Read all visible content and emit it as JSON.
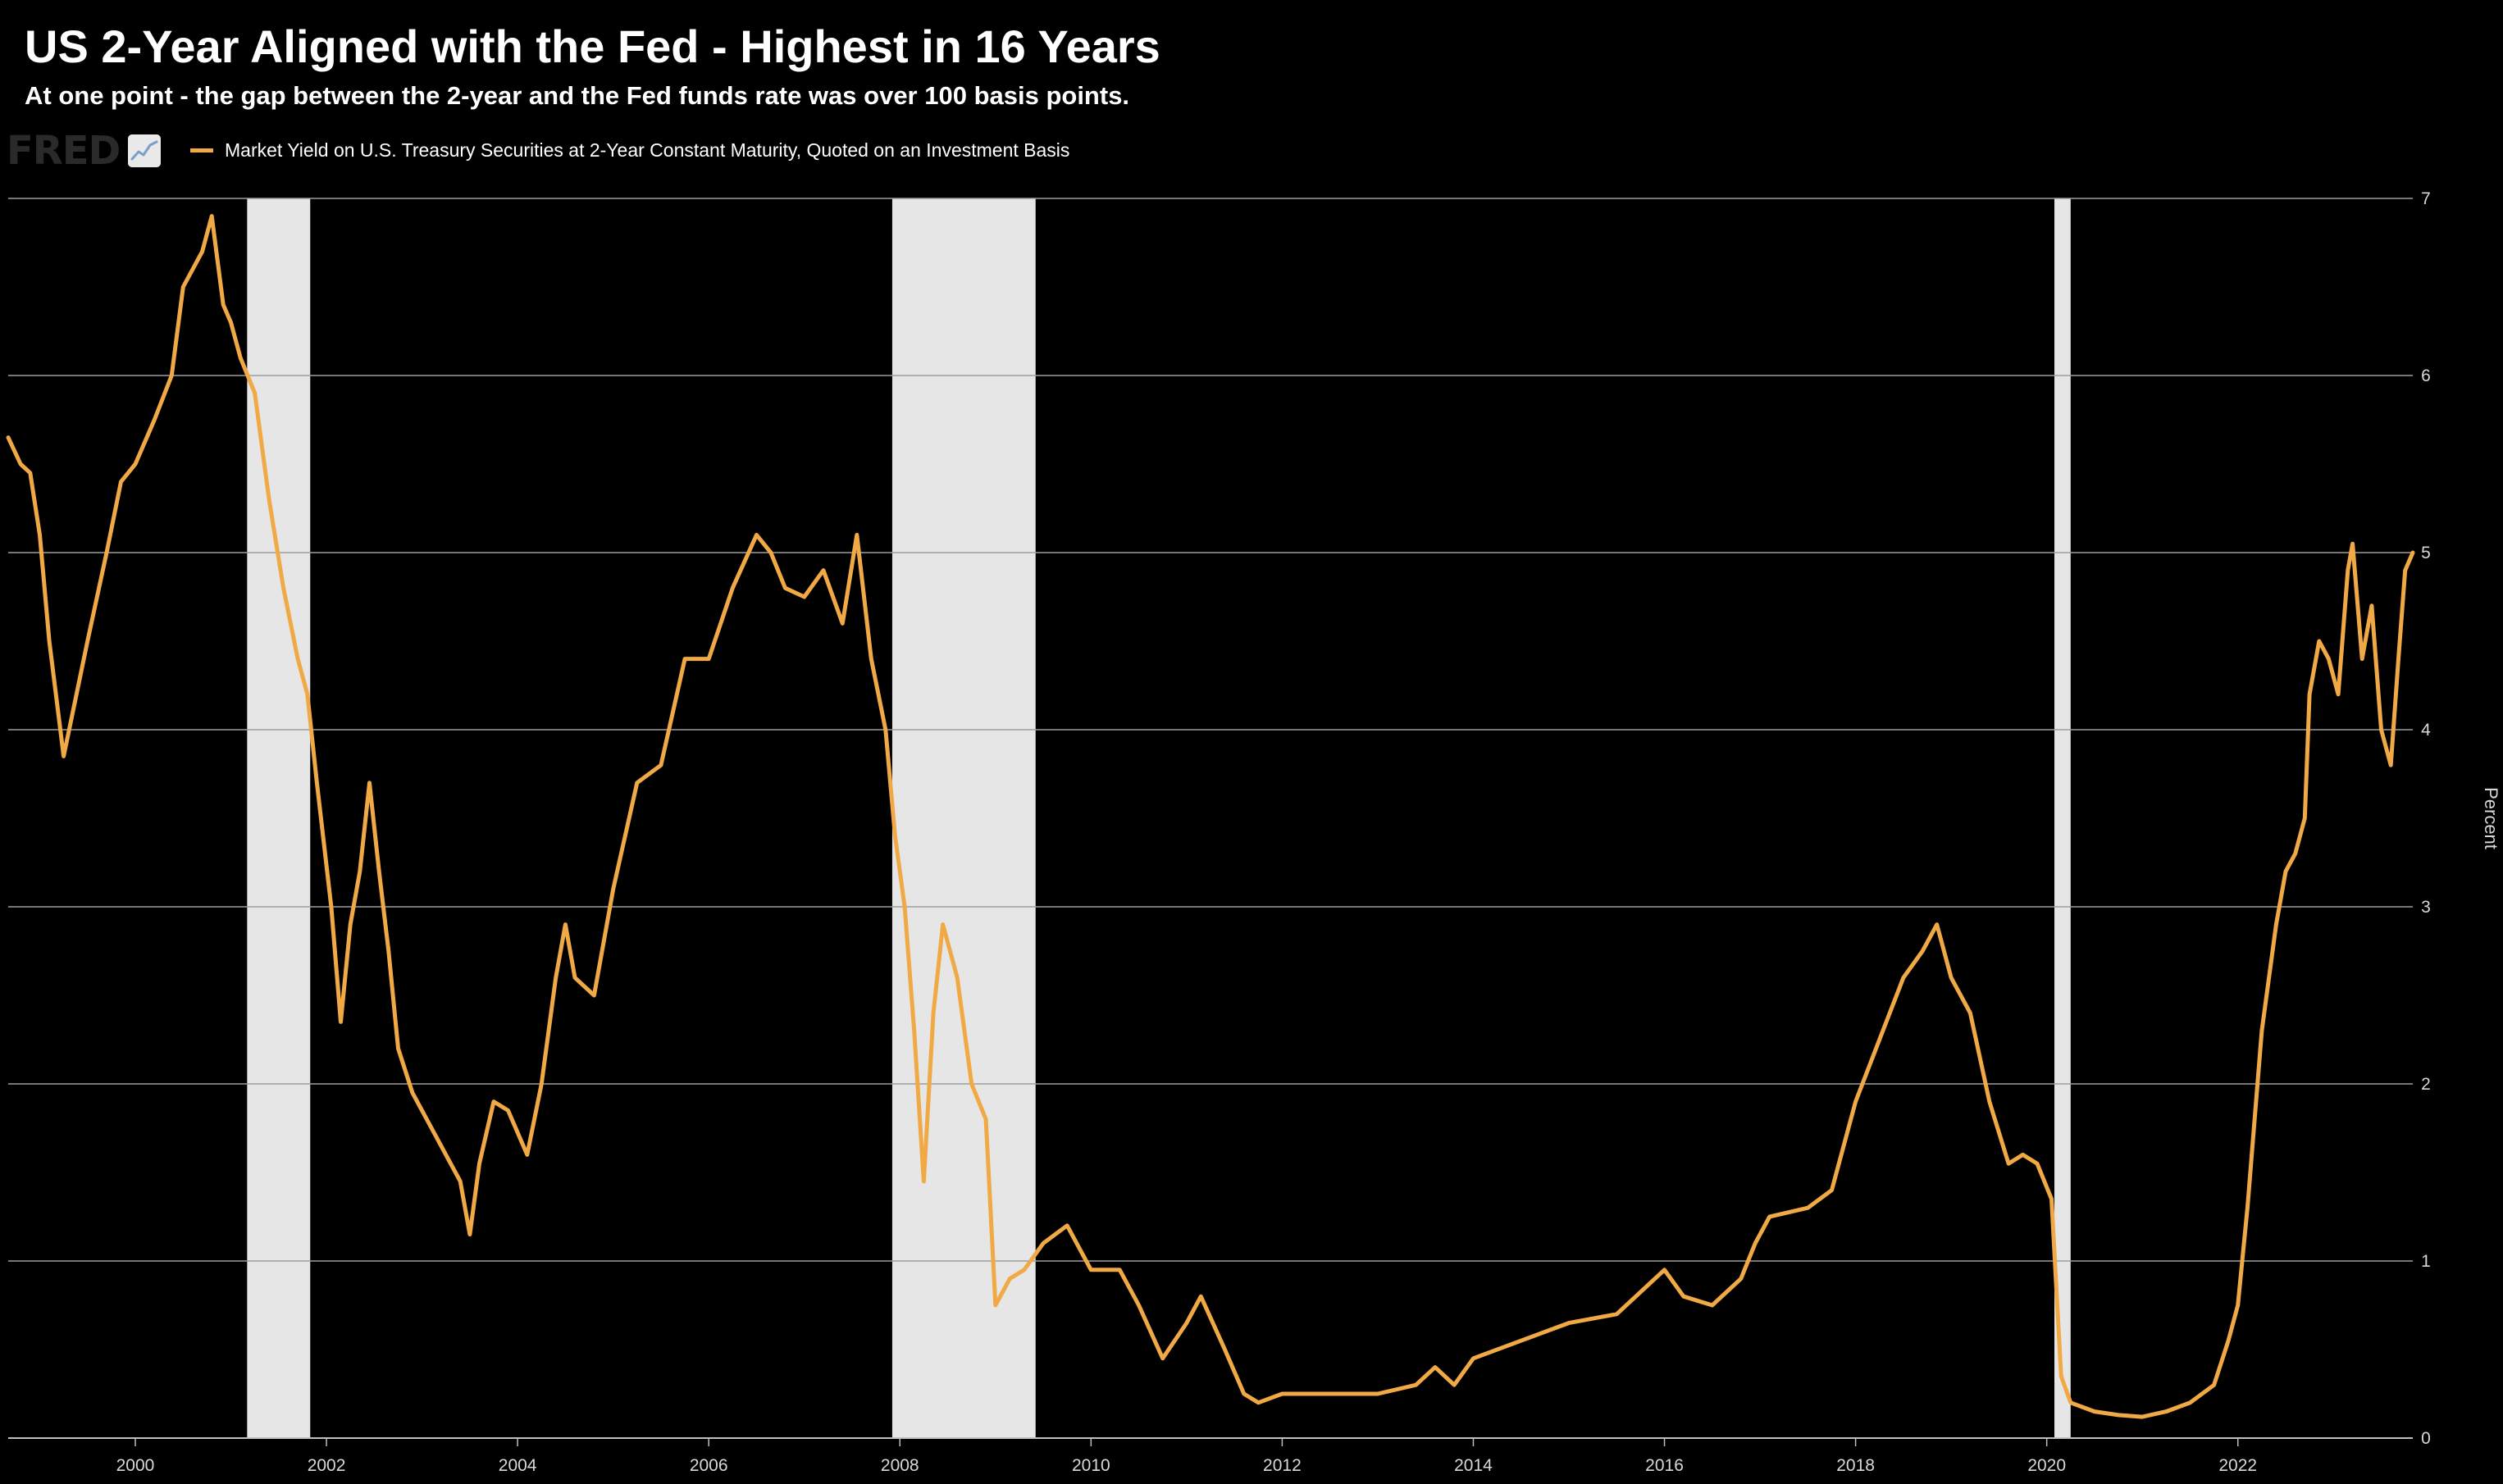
{
  "header": {
    "title": "US 2-Year Aligned with the Fed - Highest in 16 Years",
    "subtitle": "At one point - the gap between the 2-year and the Fed funds rate was over 100 basis points."
  },
  "brand": {
    "logo_text": "FRED",
    "logo_icon": "trend-chart-icon"
  },
  "chart_data": {
    "type": "line",
    "ylabel": "Percent",
    "xlim": [
      1998.67,
      2023.83
    ],
    "ylim": [
      0,
      7
    ],
    "x_ticks": [
      "2000",
      "2002",
      "2004",
      "2006",
      "2008",
      "2010",
      "2012",
      "2014",
      "2016",
      "2018",
      "2020",
      "2022"
    ],
    "y_ticks": [
      "0",
      "1",
      "2",
      "3",
      "4",
      "5",
      "6",
      "7"
    ],
    "grid": true,
    "legend_position": "top-left",
    "series": [
      {
        "name": "Market Yield on U.S. Treasury Securities at 2-Year Constant Maturity, Quoted on an Investment Basis",
        "color": "#f0a944",
        "x": [
          1998.67,
          1998.8,
          1998.9,
          1999.0,
          1999.1,
          1999.25,
          1999.5,
          1999.7,
          1999.85,
          2000.0,
          2000.2,
          2000.38,
          2000.5,
          2000.7,
          2000.8,
          2000.92,
          2001.0,
          2001.1,
          2001.25,
          2001.4,
          2001.55,
          2001.7,
          2001.8,
          2001.9,
          2002.05,
          2002.15,
          2002.25,
          2002.35,
          2002.45,
          2002.55,
          2002.65,
          2002.75,
          2002.9,
          2003.1,
          2003.25,
          2003.4,
          2003.5,
          2003.6,
          2003.75,
          2003.9,
          2004.1,
          2004.25,
          2004.4,
          2004.5,
          2004.6,
          2004.8,
          2005.0,
          2005.25,
          2005.5,
          2005.75,
          2006.0,
          2006.25,
          2006.5,
          2006.65,
          2006.8,
          2007.0,
          2007.2,
          2007.4,
          2007.55,
          2007.7,
          2007.85,
          2007.95,
          2008.05,
          2008.15,
          2008.25,
          2008.35,
          2008.45,
          2008.6,
          2008.75,
          2008.9,
          2009.0,
          2009.15,
          2009.3,
          2009.5,
          2009.75,
          2010.0,
          2010.3,
          2010.5,
          2010.75,
          2011.0,
          2011.15,
          2011.4,
          2011.6,
          2011.75,
          2012.0,
          2012.5,
          2013.0,
          2013.4,
          2013.6,
          2013.8,
          2014.0,
          2014.5,
          2015.0,
          2015.5,
          2015.8,
          2016.0,
          2016.2,
          2016.5,
          2016.8,
          2016.95,
          2017.1,
          2017.5,
          2017.75,
          2018.0,
          2018.25,
          2018.5,
          2018.7,
          2018.85,
          2019.0,
          2019.2,
          2019.4,
          2019.6,
          2019.75,
          2019.9,
          2020.05,
          2020.15,
          2020.25,
          2020.5,
          2020.75,
          2021.0,
          2021.25,
          2021.5,
          2021.75,
          2021.9,
          2022.0,
          2022.1,
          2022.25,
          2022.4,
          2022.5,
          2022.6,
          2022.7,
          2022.75,
          2022.85,
          2022.95,
          2023.05,
          2023.15,
          2023.2,
          2023.3,
          2023.4,
          2023.5,
          2023.6,
          2023.68,
          2023.75,
          2023.83
        ],
        "values": [
          5.65,
          5.5,
          5.45,
          5.1,
          4.5,
          3.85,
          4.5,
          5.0,
          5.4,
          5.5,
          5.75,
          6.0,
          6.5,
          6.7,
          6.9,
          6.4,
          6.3,
          6.1,
          5.9,
          5.3,
          4.8,
          4.4,
          4.2,
          3.7,
          3.0,
          2.35,
          2.9,
          3.2,
          3.7,
          3.2,
          2.75,
          2.2,
          1.95,
          1.75,
          1.6,
          1.45,
          1.15,
          1.55,
          1.9,
          1.85,
          1.6,
          2.0,
          2.6,
          2.9,
          2.6,
          2.5,
          3.1,
          3.7,
          3.8,
          4.4,
          4.4,
          4.8,
          5.1,
          5.0,
          4.8,
          4.75,
          4.9,
          4.6,
          5.1,
          4.4,
          4.0,
          3.4,
          3.0,
          2.3,
          1.45,
          2.4,
          2.9,
          2.6,
          2.0,
          1.8,
          0.75,
          0.9,
          0.95,
          1.1,
          1.2,
          0.95,
          0.95,
          0.75,
          0.45,
          0.65,
          0.8,
          0.5,
          0.25,
          0.2,
          0.25,
          0.25,
          0.25,
          0.3,
          0.4,
          0.3,
          0.45,
          0.55,
          0.65,
          0.7,
          0.85,
          0.95,
          0.8,
          0.75,
          0.9,
          1.1,
          1.25,
          1.3,
          1.4,
          1.9,
          2.25,
          2.6,
          2.75,
          2.9,
          2.6,
          2.4,
          1.9,
          1.55,
          1.6,
          1.55,
          1.35,
          0.35,
          0.2,
          0.15,
          0.13,
          0.12,
          0.15,
          0.2,
          0.3,
          0.55,
          0.75,
          1.3,
          2.3,
          2.9,
          3.2,
          3.3,
          3.5,
          4.2,
          4.5,
          4.4,
          4.2,
          4.9,
          5.05,
          4.4,
          4.7,
          4.0,
          3.8,
          4.4,
          4.9,
          5.0
        ]
      }
    ],
    "shaded_ranges": [
      [
        2001.17,
        2001.83
      ],
      [
        2007.92,
        2009.42
      ],
      [
        2020.08,
        2020.25
      ]
    ],
    "shade_color": "#e6e6e6",
    "line_color": "#f0a944"
  }
}
